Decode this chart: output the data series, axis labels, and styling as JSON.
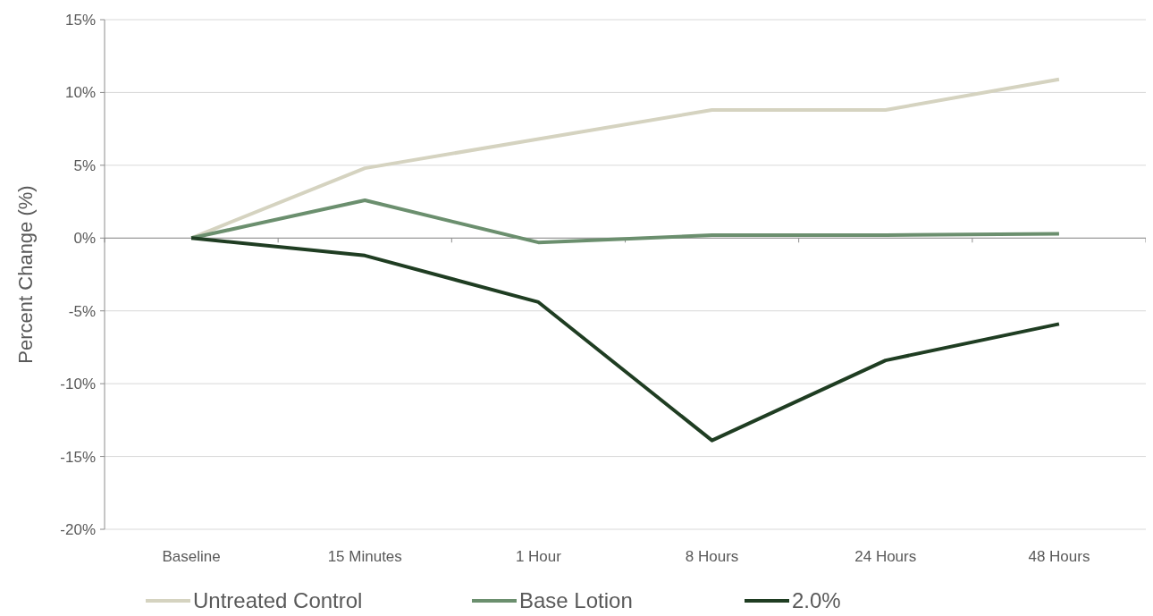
{
  "chart_data": {
    "type": "line",
    "ylabel": "Percent Change (%)",
    "categories": [
      "Baseline",
      "15 Minutes",
      "1 Hour",
      "8 Hours",
      "24 Hours",
      "48 Hours"
    ],
    "series": [
      {
        "name": "Untreated Control",
        "color": "#d5d3c0",
        "values": [
          0,
          4.8,
          6.8,
          8.8,
          8.8,
          10.9
        ]
      },
      {
        "name": "Base Lotion",
        "color": "#6b8f6e",
        "values": [
          0,
          2.6,
          -0.3,
          0.2,
          0.2,
          0.3
        ]
      },
      {
        "name": "2.0%",
        "color": "#1f3d22",
        "values": [
          0,
          -1.2,
          -4.4,
          -13.9,
          -8.4,
          -5.9
        ]
      }
    ],
    "ylim": [
      -20,
      15
    ],
    "yticks": [
      {
        "value": -20,
        "label": "-20%"
      },
      {
        "value": -15,
        "label": "-15%"
      },
      {
        "value": -10,
        "label": "-10%"
      },
      {
        "value": -5,
        "label": "-5%"
      },
      {
        "value": 0,
        "label": "0%"
      },
      {
        "value": 5,
        "label": "5%"
      },
      {
        "value": 10,
        "label": "10%"
      },
      {
        "value": 15,
        "label": "15%"
      }
    ],
    "grid": "y",
    "legend": "bottom",
    "marker": "none",
    "line_style": "solid"
  }
}
